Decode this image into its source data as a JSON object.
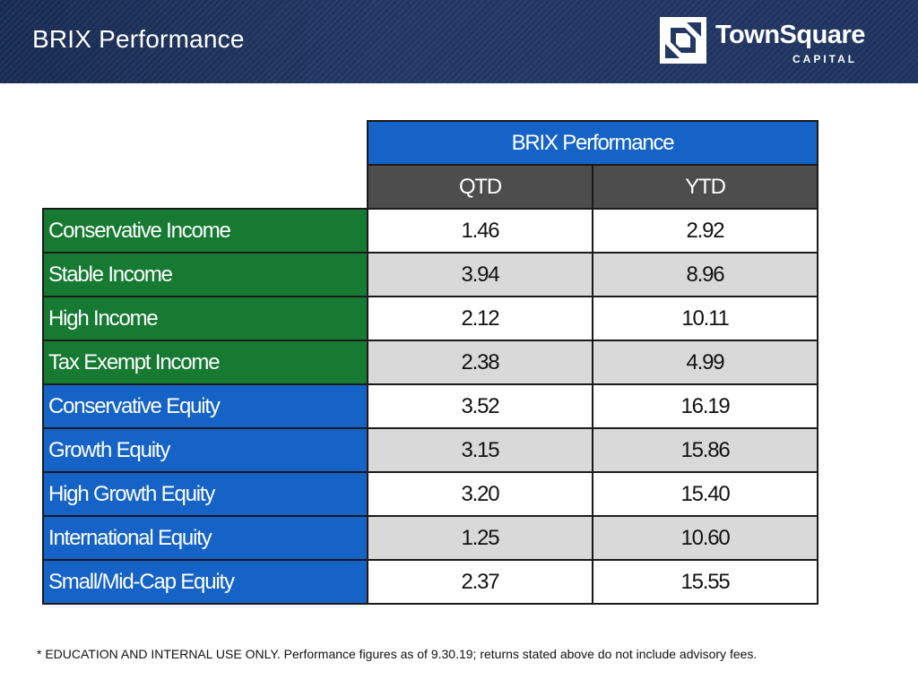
{
  "header": {
    "title": "BRIX Performance",
    "logo": {
      "name": "TownSquare",
      "subtitle": "CAPITAL",
      "icon": "townsquare-logo-icon"
    }
  },
  "table": {
    "title": "BRIX Performance",
    "columns": [
      "QTD",
      "YTD"
    ],
    "rows": [
      {
        "label": "Conservative Income",
        "group": "income",
        "qtd": "1.46",
        "ytd": "2.92"
      },
      {
        "label": "Stable Income",
        "group": "income",
        "qtd": "3.94",
        "ytd": "8.96"
      },
      {
        "label": "High Income",
        "group": "income",
        "qtd": "2.12",
        "ytd": "10.11"
      },
      {
        "label": "Tax Exempt Income",
        "group": "income",
        "qtd": "2.38",
        "ytd": "4.99"
      },
      {
        "label": "Conservative Equity",
        "group": "equity",
        "qtd": "3.52",
        "ytd": "16.19"
      },
      {
        "label": "Growth Equity",
        "group": "equity",
        "qtd": "3.15",
        "ytd": "15.86"
      },
      {
        "label": "High Growth Equity",
        "group": "equity",
        "qtd": "3.20",
        "ytd": "15.40"
      },
      {
        "label": "International Equity",
        "group": "equity",
        "qtd": "1.25",
        "ytd": "10.60"
      },
      {
        "label": "Small/Mid-Cap Equity",
        "group": "equity",
        "qtd": "2.37",
        "ytd": "15.55"
      }
    ]
  },
  "footnote": "* EDUCATION AND INTERNAL USE ONLY. Performance figures as of 9.30.19; returns stated above do not include advisory fees.",
  "colors": {
    "header_bg": "#1f3560",
    "title_blue": "#1563c7",
    "income_green": "#167a33",
    "header_gray": "#4d4d4d",
    "stripe_gray": "#d9d9d9"
  }
}
